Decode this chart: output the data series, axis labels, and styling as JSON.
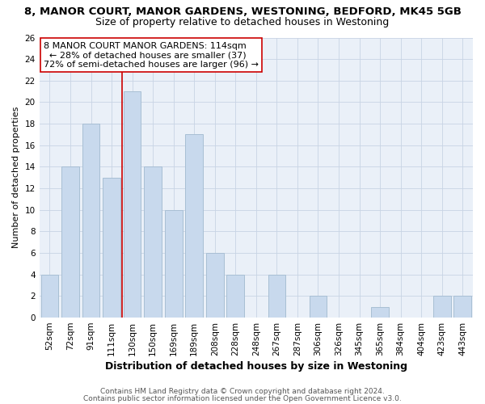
{
  "title1": "8, MANOR COURT, MANOR GARDENS, WESTONING, BEDFORD, MK45 5GB",
  "title2": "Size of property relative to detached houses in Westoning",
  "xlabel": "Distribution of detached houses by size in Westoning",
  "ylabel": "Number of detached properties",
  "bar_color": "#c8d9ed",
  "bar_edge_color": "#a8bfd4",
  "vline_color": "#cc0000",
  "vline_x": 3.5,
  "categories": [
    "52sqm",
    "72sqm",
    "91sqm",
    "111sqm",
    "130sqm",
    "150sqm",
    "169sqm",
    "189sqm",
    "208sqm",
    "228sqm",
    "248sqm",
    "267sqm",
    "287sqm",
    "306sqm",
    "326sqm",
    "345sqm",
    "365sqm",
    "384sqm",
    "404sqm",
    "423sqm",
    "443sqm"
  ],
  "values": [
    4,
    14,
    18,
    13,
    21,
    14,
    10,
    17,
    6,
    4,
    0,
    4,
    0,
    2,
    0,
    0,
    1,
    0,
    0,
    2,
    2
  ],
  "ylim": [
    0,
    26
  ],
  "yticks": [
    0,
    2,
    4,
    6,
    8,
    10,
    12,
    14,
    16,
    18,
    20,
    22,
    24,
    26
  ],
  "annotation_title": "8 MANOR COURT MANOR GARDENS: 114sqm",
  "annotation_line1": "← 28% of detached houses are smaller (37)",
  "annotation_line2": "72% of semi-detached houses are larger (96) →",
  "annotation_box_facecolor": "white",
  "annotation_box_edgecolor": "#cc0000",
  "footer1": "Contains HM Land Registry data © Crown copyright and database right 2024.",
  "footer2": "Contains public sector information licensed under the Open Government Licence v3.0.",
  "title1_fontsize": 9.5,
  "title2_fontsize": 9,
  "xlabel_fontsize": 9,
  "ylabel_fontsize": 8,
  "tick_fontsize": 7.5,
  "annotation_fontsize": 8,
  "footer_fontsize": 6.5
}
